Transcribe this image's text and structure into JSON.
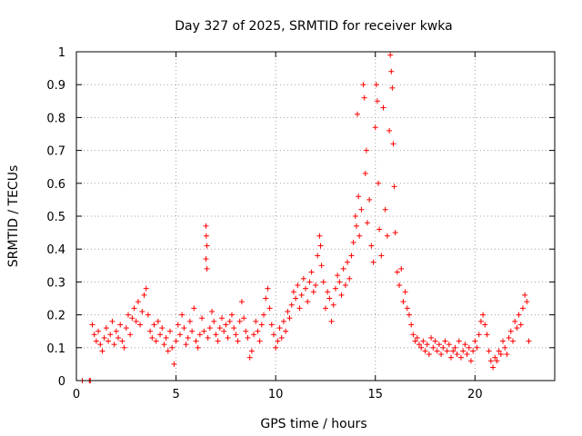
{
  "chart_data": {
    "type": "scatter",
    "title": "Day 327 of 2025, SRMTID for receiver kwka",
    "xlabel": "GPS time / hours",
    "ylabel": "SRMTID / TECUs",
    "xlim": [
      0,
      24
    ],
    "ylim": [
      0,
      1
    ],
    "xticks": [
      0,
      5,
      10,
      15,
      20
    ],
    "yticks": [
      0,
      0.1,
      0.2,
      0.3,
      0.4,
      0.5,
      0.6,
      0.7,
      0.8,
      0.9,
      1
    ],
    "xtick_labels": [
      "0",
      "5",
      "10",
      "15",
      "20"
    ],
    "ytick_labels": [
      "0",
      "0.1",
      "0.2",
      "0.3",
      "0.4",
      "0.5",
      "0.6",
      "0.7",
      "0.8",
      "0.9",
      "1"
    ],
    "grid": true,
    "marker": "+",
    "color": "#ff0000",
    "series": [
      {
        "name": "SRMTID",
        "points": [
          [
            0.3,
            0.0
          ],
          [
            0.65,
            0.0
          ],
          [
            0.7,
            0.0
          ],
          [
            0.8,
            0.17
          ],
          [
            0.9,
            0.14
          ],
          [
            1.0,
            0.12
          ],
          [
            1.1,
            0.15
          ],
          [
            1.2,
            0.11
          ],
          [
            1.3,
            0.09
          ],
          [
            1.4,
            0.13
          ],
          [
            1.5,
            0.16
          ],
          [
            1.6,
            0.12
          ],
          [
            1.7,
            0.14
          ],
          [
            1.8,
            0.18
          ],
          [
            1.9,
            0.11
          ],
          [
            2.0,
            0.15
          ],
          [
            2.1,
            0.13
          ],
          [
            2.2,
            0.17
          ],
          [
            2.3,
            0.12
          ],
          [
            2.4,
            0.1
          ],
          [
            2.5,
            0.16
          ],
          [
            2.6,
            0.2
          ],
          [
            2.7,
            0.14
          ],
          [
            2.8,
            0.19
          ],
          [
            2.9,
            0.22
          ],
          [
            3.0,
            0.18
          ],
          [
            3.1,
            0.24
          ],
          [
            3.2,
            0.17
          ],
          [
            3.3,
            0.21
          ],
          [
            3.4,
            0.26
          ],
          [
            3.5,
            0.28
          ],
          [
            3.6,
            0.2
          ],
          [
            3.7,
            0.15
          ],
          [
            3.8,
            0.13
          ],
          [
            3.9,
            0.17
          ],
          [
            4.0,
            0.12
          ],
          [
            4.1,
            0.18
          ],
          [
            4.2,
            0.14
          ],
          [
            4.3,
            0.16
          ],
          [
            4.4,
            0.11
          ],
          [
            4.5,
            0.13
          ],
          [
            4.6,
            0.09
          ],
          [
            4.7,
            0.15
          ],
          [
            4.8,
            0.1
          ],
          [
            4.9,
            0.05
          ],
          [
            5.0,
            0.12
          ],
          [
            5.1,
            0.17
          ],
          [
            5.2,
            0.14
          ],
          [
            5.3,
            0.2
          ],
          [
            5.4,
            0.16
          ],
          [
            5.5,
            0.11
          ],
          [
            5.6,
            0.13
          ],
          [
            5.7,
            0.18
          ],
          [
            5.8,
            0.15
          ],
          [
            5.9,
            0.22
          ],
          [
            6.0,
            0.12
          ],
          [
            6.1,
            0.1
          ],
          [
            6.2,
            0.14
          ],
          [
            6.3,
            0.19
          ],
          [
            6.4,
            0.15
          ],
          [
            6.5,
            0.47
          ],
          [
            6.52,
            0.44
          ],
          [
            6.55,
            0.41
          ],
          [
            6.5,
            0.37
          ],
          [
            6.55,
            0.34
          ],
          [
            6.6,
            0.13
          ],
          [
            6.7,
            0.16
          ],
          [
            6.8,
            0.21
          ],
          [
            6.9,
            0.18
          ],
          [
            7.0,
            0.14
          ],
          [
            7.1,
            0.12
          ],
          [
            7.2,
            0.16
          ],
          [
            7.3,
            0.19
          ],
          [
            7.4,
            0.15
          ],
          [
            7.5,
            0.17
          ],
          [
            7.6,
            0.13
          ],
          [
            7.7,
            0.18
          ],
          [
            7.8,
            0.2
          ],
          [
            7.9,
            0.16
          ],
          [
            8.0,
            0.14
          ],
          [
            8.1,
            0.12
          ],
          [
            8.2,
            0.18
          ],
          [
            8.3,
            0.24
          ],
          [
            8.4,
            0.19
          ],
          [
            8.5,
            0.15
          ],
          [
            8.6,
            0.13
          ],
          [
            8.7,
            0.07
          ],
          [
            8.8,
            0.09
          ],
          [
            8.9,
            0.14
          ],
          [
            9.0,
            0.18
          ],
          [
            9.1,
            0.15
          ],
          [
            9.2,
            0.12
          ],
          [
            9.3,
            0.17
          ],
          [
            9.4,
            0.2
          ],
          [
            9.5,
            0.25
          ],
          [
            9.6,
            0.28
          ],
          [
            9.7,
            0.22
          ],
          [
            9.8,
            0.17
          ],
          [
            9.9,
            0.14
          ],
          [
            10.0,
            0.1
          ],
          [
            10.1,
            0.12
          ],
          [
            10.2,
            0.16
          ],
          [
            10.3,
            0.13
          ],
          [
            10.4,
            0.18
          ],
          [
            10.5,
            0.15
          ],
          [
            10.6,
            0.21
          ],
          [
            10.7,
            0.19
          ],
          [
            10.8,
            0.23
          ],
          [
            10.9,
            0.27
          ],
          [
            11.0,
            0.25
          ],
          [
            11.1,
            0.29
          ],
          [
            11.2,
            0.22
          ],
          [
            11.3,
            0.26
          ],
          [
            11.4,
            0.31
          ],
          [
            11.5,
            0.28
          ],
          [
            11.6,
            0.24
          ],
          [
            11.7,
            0.3
          ],
          [
            11.8,
            0.33
          ],
          [
            11.9,
            0.27
          ],
          [
            12.0,
            0.29
          ],
          [
            12.1,
            0.38
          ],
          [
            12.2,
            0.44
          ],
          [
            12.25,
            0.41
          ],
          [
            12.3,
            0.35
          ],
          [
            12.4,
            0.3
          ],
          [
            12.5,
            0.22
          ],
          [
            12.6,
            0.27
          ],
          [
            12.7,
            0.25
          ],
          [
            12.8,
            0.18
          ],
          [
            12.9,
            0.23
          ],
          [
            13.0,
            0.28
          ],
          [
            13.1,
            0.32
          ],
          [
            13.2,
            0.3
          ],
          [
            13.3,
            0.26
          ],
          [
            13.4,
            0.34
          ],
          [
            13.5,
            0.29
          ],
          [
            13.6,
            0.36
          ],
          [
            13.7,
            0.31
          ],
          [
            13.8,
            0.38
          ],
          [
            13.9,
            0.42
          ],
          [
            14.0,
            0.5
          ],
          [
            14.05,
            0.47
          ],
          [
            14.1,
            0.81
          ],
          [
            14.15,
            0.56
          ],
          [
            14.2,
            0.44
          ],
          [
            14.3,
            0.52
          ],
          [
            14.4,
            0.9
          ],
          [
            14.45,
            0.86
          ],
          [
            14.5,
            0.63
          ],
          [
            14.55,
            0.7
          ],
          [
            14.6,
            0.48
          ],
          [
            14.7,
            0.55
          ],
          [
            14.8,
            0.41
          ],
          [
            14.9,
            0.36
          ],
          [
            15.0,
            0.77
          ],
          [
            15.05,
            0.9
          ],
          [
            15.1,
            0.85
          ],
          [
            15.15,
            0.6
          ],
          [
            15.2,
            0.46
          ],
          [
            15.3,
            0.38
          ],
          [
            15.4,
            0.83
          ],
          [
            15.5,
            0.52
          ],
          [
            15.6,
            0.44
          ],
          [
            15.7,
            0.76
          ],
          [
            15.75,
            0.99
          ],
          [
            15.8,
            0.94
          ],
          [
            15.85,
            0.89
          ],
          [
            15.9,
            0.72
          ],
          [
            15.95,
            0.59
          ],
          [
            16.0,
            0.45
          ],
          [
            16.1,
            0.33
          ],
          [
            16.2,
            0.29
          ],
          [
            16.3,
            0.34
          ],
          [
            16.4,
            0.24
          ],
          [
            16.5,
            0.27
          ],
          [
            16.6,
            0.22
          ],
          [
            16.7,
            0.2
          ],
          [
            16.8,
            0.17
          ],
          [
            16.9,
            0.14
          ],
          [
            17.0,
            0.12
          ],
          [
            17.1,
            0.13
          ],
          [
            17.2,
            0.11
          ],
          [
            17.3,
            0.1
          ],
          [
            17.4,
            0.12
          ],
          [
            17.5,
            0.09
          ],
          [
            17.6,
            0.11
          ],
          [
            17.7,
            0.08
          ],
          [
            17.8,
            0.13
          ],
          [
            17.9,
            0.1
          ],
          [
            18.0,
            0.12
          ],
          [
            18.1,
            0.09
          ],
          [
            18.2,
            0.11
          ],
          [
            18.3,
            0.08
          ],
          [
            18.4,
            0.1
          ],
          [
            18.5,
            0.12
          ],
          [
            18.6,
            0.09
          ],
          [
            18.7,
            0.11
          ],
          [
            18.8,
            0.07
          ],
          [
            18.9,
            0.09
          ],
          [
            19.0,
            0.1
          ],
          [
            19.1,
            0.08
          ],
          [
            19.2,
            0.12
          ],
          [
            19.3,
            0.07
          ],
          [
            19.4,
            0.09
          ],
          [
            19.5,
            0.11
          ],
          [
            19.6,
            0.08
          ],
          [
            19.7,
            0.1
          ],
          [
            19.8,
            0.06
          ],
          [
            19.9,
            0.09
          ],
          [
            20.0,
            0.12
          ],
          [
            20.1,
            0.1
          ],
          [
            20.2,
            0.14
          ],
          [
            20.3,
            0.18
          ],
          [
            20.4,
            0.2
          ],
          [
            20.5,
            0.17
          ],
          [
            20.6,
            0.14
          ],
          [
            20.7,
            0.09
          ],
          [
            20.8,
            0.06
          ],
          [
            20.9,
            0.04
          ],
          [
            21.0,
            0.07
          ],
          [
            21.1,
            0.06
          ],
          [
            21.2,
            0.09
          ],
          [
            21.3,
            0.08
          ],
          [
            21.4,
            0.12
          ],
          [
            21.5,
            0.1
          ],
          [
            21.6,
            0.08
          ],
          [
            21.7,
            0.13
          ],
          [
            21.8,
            0.15
          ],
          [
            21.9,
            0.12
          ],
          [
            22.0,
            0.18
          ],
          [
            22.1,
            0.16
          ],
          [
            22.2,
            0.2
          ],
          [
            22.3,
            0.17
          ],
          [
            22.4,
            0.22
          ],
          [
            22.5,
            0.26
          ],
          [
            22.6,
            0.24
          ],
          [
            22.7,
            0.12
          ]
        ]
      }
    ]
  }
}
